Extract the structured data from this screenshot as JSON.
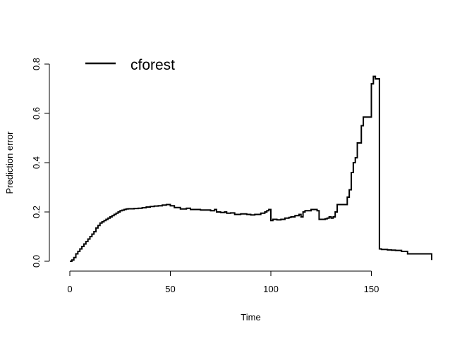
{
  "chart_data": {
    "type": "line",
    "title": "",
    "xlabel": "Time",
    "ylabel": "Prediction error",
    "xlim": [
      0,
      180
    ],
    "ylim": [
      0,
      0.8
    ],
    "x_ticks": [
      0,
      50,
      100,
      150
    ],
    "x_tick_labels": [
      "0",
      "50",
      "100",
      "150"
    ],
    "y_ticks": [
      0,
      0.2,
      0.4,
      0.6,
      0.8
    ],
    "y_tick_labels": [
      "0.0",
      "0.2",
      "0.4",
      "0.6",
      "0.8"
    ],
    "grid": false,
    "step": true,
    "line_color": "#000000",
    "legend": {
      "position": "top-left",
      "entries": [
        "cforest"
      ]
    },
    "series": [
      {
        "name": "cforest",
        "x": [
          0,
          1,
          2,
          3,
          4,
          5,
          6,
          7,
          8,
          9,
          10,
          11,
          12,
          13,
          14,
          15,
          16,
          17,
          18,
          19,
          20,
          21,
          22,
          23,
          24,
          25,
          26,
          27,
          28,
          29,
          30,
          32,
          34,
          36,
          38,
          40,
          42,
          44,
          46,
          48,
          50,
          52,
          55,
          58,
          60,
          62,
          65,
          70,
          72,
          73,
          75,
          77,
          78,
          80,
          82,
          85,
          88,
          90,
          92,
          95,
          97,
          98,
          99,
          100,
          101,
          103,
          105,
          107,
          109,
          110,
          112,
          114,
          115,
          116,
          117,
          118,
          120,
          123,
          124,
          125,
          127,
          128,
          129,
          130,
          131,
          132,
          133,
          134,
          135,
          136,
          137,
          138,
          139,
          140,
          141,
          142,
          143,
          144,
          145,
          146,
          147,
          148,
          149,
          150,
          151,
          152,
          153,
          154,
          155,
          156,
          158,
          160,
          162,
          165,
          168,
          170,
          175,
          179,
          180
        ],
        "y": [
          0.0,
          0.005,
          0.015,
          0.03,
          0.04,
          0.05,
          0.06,
          0.07,
          0.08,
          0.09,
          0.1,
          0.11,
          0.12,
          0.135,
          0.145,
          0.155,
          0.16,
          0.165,
          0.17,
          0.175,
          0.18,
          0.185,
          0.19,
          0.195,
          0.2,
          0.205,
          0.207,
          0.21,
          0.212,
          0.213,
          0.213,
          0.214,
          0.215,
          0.217,
          0.22,
          0.222,
          0.224,
          0.225,
          0.228,
          0.23,
          0.225,
          0.218,
          0.212,
          0.215,
          0.21,
          0.21,
          0.208,
          0.205,
          0.21,
          0.2,
          0.198,
          0.2,
          0.195,
          0.196,
          0.19,
          0.192,
          0.19,
          0.188,
          0.19,
          0.195,
          0.2,
          0.205,
          0.21,
          0.165,
          0.17,
          0.168,
          0.17,
          0.175,
          0.178,
          0.18,
          0.185,
          0.19,
          0.18,
          0.2,
          0.205,
          0.205,
          0.21,
          0.205,
          0.17,
          0.17,
          0.172,
          0.175,
          0.18,
          0.175,
          0.18,
          0.2,
          0.23,
          0.23,
          0.23,
          0.23,
          0.23,
          0.26,
          0.29,
          0.36,
          0.4,
          0.42,
          0.48,
          0.48,
          0.55,
          0.585,
          0.585,
          0.585,
          0.585,
          0.72,
          0.75,
          0.74,
          0.74,
          0.05,
          0.048,
          0.048,
          0.046,
          0.045,
          0.044,
          0.04,
          0.03,
          0.03,
          0.03,
          0.03,
          0.005
        ]
      }
    ]
  }
}
